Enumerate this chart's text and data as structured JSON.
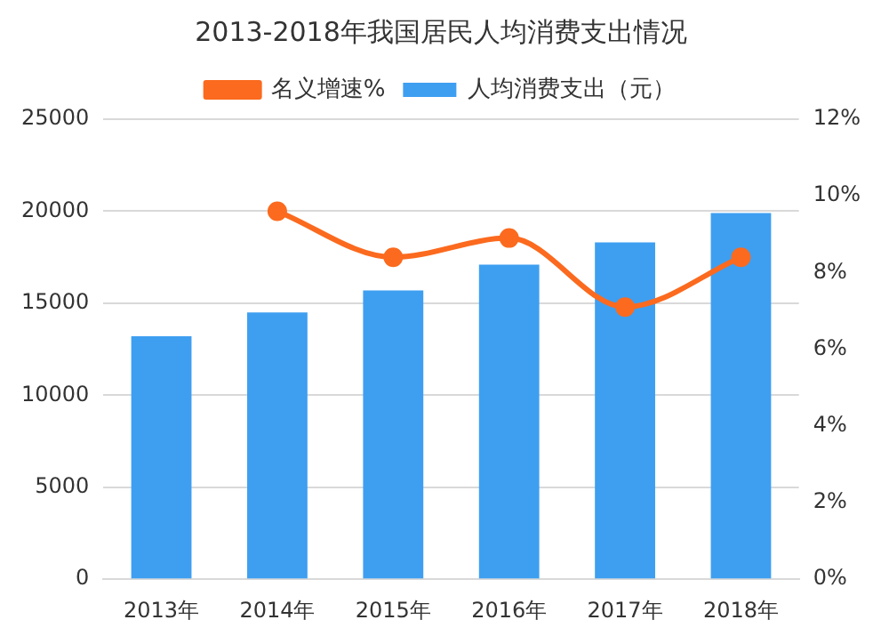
{
  "chart_data": {
    "type": "bar",
    "title": "2013-2018年我国居民人均消费支出情况",
    "categories": [
      "2013年",
      "2014年",
      "2015年",
      "2016年",
      "2017年",
      "2018年"
    ],
    "series": [
      {
        "name": "人均消费支出（元）",
        "color": "#3e9ff1",
        "values": [
          13200,
          14500,
          15700,
          17100,
          18300,
          19900
        ]
      },
      {
        "name": "名义增速%",
        "type": "line",
        "axis": "y2",
        "color": "#fb6a1e",
        "marker": "circle",
        "values": [
          null,
          9.6,
          8.4,
          8.9,
          7.1,
          8.4
        ]
      }
    ],
    "ylim": [
      0,
      25000
    ],
    "yticks": [
      0,
      5000,
      10000,
      15000,
      20000,
      25000
    ],
    "y2lim": [
      0,
      12
    ],
    "y2ticks": [
      {
        "value": 0,
        "label": "0%"
      },
      {
        "value": 2,
        "label": "2%"
      },
      {
        "value": 4,
        "label": "4%"
      },
      {
        "value": 6,
        "label": "6%"
      },
      {
        "value": 8,
        "label": "8%"
      },
      {
        "value": 10,
        "label": "10%"
      },
      {
        "value": 12,
        "label": "12%"
      }
    ],
    "grid": "y",
    "legend": "top"
  }
}
